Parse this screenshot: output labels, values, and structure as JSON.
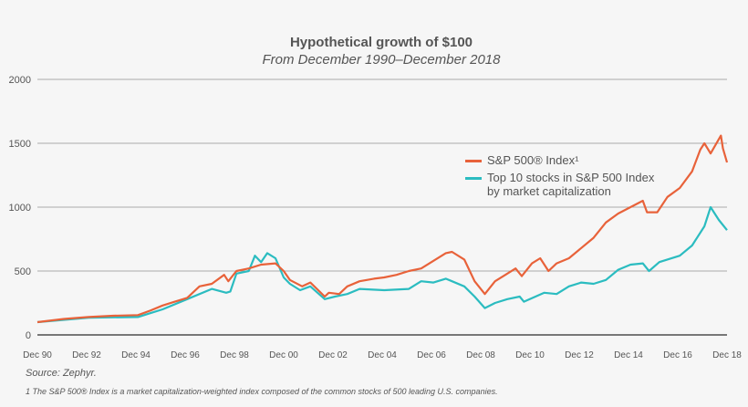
{
  "chart_data": {
    "type": "line",
    "title": "Hypothetical growth of $100",
    "subtitle": "From December 1990–December 2018",
    "xlabel": "",
    "ylabel": "",
    "ylim": [
      0,
      2000
    ],
    "yticks": [
      0,
      500,
      1000,
      1500,
      2000
    ],
    "xlim": [
      "1990-12",
      "2018-12"
    ],
    "xticks": [
      "Dec 90",
      "Dec 92",
      "Dec 94",
      "Dec 96",
      "Dec 98",
      "Dec 00",
      "Dec 02",
      "Dec 04",
      "Dec 06",
      "Dec 08",
      "Dec 10",
      "Dec 12",
      "Dec 14",
      "Dec 16",
      "Dec 18"
    ],
    "grid": "horizontal",
    "legend_position": "right-center",
    "series": [
      {
        "name": "S&P 500® Index¹",
        "color": "#e8623a",
        "x": [
          "1990-12",
          "1992-01",
          "1993-01",
          "1994-01",
          "1995-01",
          "1995-07",
          "1996-01",
          "1996-07",
          "1997-01",
          "1997-07",
          "1998-01",
          "1998-07",
          "1998-09",
          "1999-01",
          "1999-07",
          "2000-01",
          "2000-08",
          "2000-12",
          "2001-03",
          "2001-09",
          "2002-01",
          "2002-08",
          "2002-10",
          "2003-03",
          "2003-07",
          "2004-01",
          "2004-08",
          "2005-01",
          "2005-07",
          "2006-01",
          "2006-07",
          "2007-01",
          "2007-07",
          "2007-10",
          "2008-04",
          "2008-09",
          "2009-02",
          "2009-07",
          "2010-01",
          "2010-05",
          "2010-08",
          "2011-01",
          "2011-05",
          "2011-09",
          "2012-01",
          "2012-07",
          "2013-01",
          "2013-07",
          "2014-01",
          "2014-07",
          "2015-01",
          "2015-07",
          "2015-09",
          "2016-02",
          "2016-07",
          "2017-01",
          "2017-07",
          "2017-11",
          "2018-01",
          "2018-04",
          "2018-09",
          "2018-10",
          "2018-12"
        ],
        "values": [
          100,
          125,
          140,
          150,
          155,
          190,
          230,
          260,
          290,
          380,
          400,
          470,
          420,
          500,
          520,
          550,
          560,
          500,
          430,
          380,
          410,
          300,
          330,
          320,
          380,
          420,
          440,
          450,
          470,
          500,
          520,
          580,
          640,
          650,
          590,
          420,
          320,
          420,
          480,
          520,
          460,
          560,
          600,
          500,
          560,
          600,
          680,
          760,
          880,
          950,
          1000,
          1050,
          960,
          960,
          1080,
          1150,
          1280,
          1450,
          1500,
          1420,
          1560,
          1460,
          1350
        ]
      },
      {
        "name": "Top 10 stocks in S&P 500 Index by market capitalization",
        "name_lines": [
          "Top 10 stocks in S&P 500 Index",
          "by market capitalization"
        ],
        "color": "#2bbcc0",
        "x": [
          "1990-12",
          "1993-01",
          "1995-01",
          "1995-07",
          "1996-01",
          "1997-01",
          "1998-01",
          "1998-08",
          "1998-10",
          "1999-01",
          "1999-07",
          "1999-10",
          "2000-01",
          "2000-04",
          "2000-08",
          "2000-12",
          "2001-03",
          "2001-08",
          "2002-01",
          "2002-08",
          "2003-01",
          "2003-07",
          "2004-01",
          "2005-01",
          "2006-01",
          "2006-07",
          "2007-01",
          "2007-07",
          "2007-10",
          "2008-04",
          "2008-09",
          "2009-02",
          "2009-07",
          "2010-01",
          "2010-07",
          "2010-09",
          "2011-07",
          "2012-01",
          "2012-07",
          "2013-01",
          "2013-07",
          "2014-01",
          "2014-07",
          "2015-01",
          "2015-07",
          "2015-10",
          "2016-03",
          "2017-01",
          "2017-07",
          "2018-01",
          "2018-04",
          "2018-08",
          "2018-12"
        ],
        "values": [
          100,
          135,
          140,
          170,
          200,
          280,
          360,
          330,
          340,
          480,
          500,
          620,
          570,
          640,
          600,
          450,
          400,
          350,
          380,
          280,
          300,
          320,
          360,
          350,
          360,
          420,
          410,
          440,
          420,
          380,
          300,
          210,
          250,
          280,
          300,
          260,
          330,
          320,
          380,
          410,
          400,
          430,
          510,
          550,
          560,
          500,
          570,
          620,
          700,
          850,
          1000,
          900,
          820
        ]
      }
    ],
    "source": "Source: Zephyr.",
    "footnote": "1 The S&P 500® Index is a market capitalization-weighted index composed of the common stocks of 500 leading U.S. companies."
  }
}
